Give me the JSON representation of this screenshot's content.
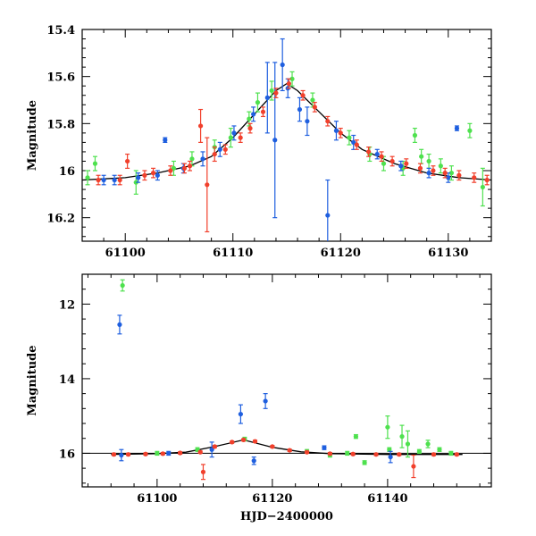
{
  "chart_data": [
    {
      "type": "scatter",
      "panel": "top",
      "title": "",
      "xlabel": "",
      "ylabel": "Magnitude",
      "xlim": [
        61096,
        61134
      ],
      "ylim": [
        16.3,
        15.4
      ],
      "y_inverted": true,
      "xticks": [
        61100,
        61110,
        61120,
        61130
      ],
      "xtick_labels": [
        "61100",
        "61110",
        "61120",
        "61130"
      ],
      "yticks": [
        15.4,
        15.6,
        15.8,
        16.0,
        16.2
      ],
      "ytick_labels": [
        "15.4",
        "15.6",
        "15.8",
        "16",
        "16.2"
      ],
      "model_curve": {
        "name": "model",
        "color": "#000000",
        "x": [
          61096,
          61100,
          61103,
          61106,
          61108,
          61110,
          61112,
          61114,
          61115,
          61116,
          61118,
          61120,
          61122,
          61125,
          61128,
          61131,
          61134
        ],
        "y": [
          16.04,
          16.03,
          16.01,
          15.98,
          15.94,
          15.86,
          15.76,
          15.66,
          15.63,
          15.66,
          15.75,
          15.84,
          15.91,
          15.97,
          16.01,
          16.03,
          16.04
        ]
      },
      "series": [
        {
          "name": "green",
          "color": "#4ee14e",
          "x": [
            61096.5,
            61097.2,
            61101.0,
            61104.5,
            61106.2,
            61108.3,
            61109.8,
            61111.5,
            61112.3,
            61113.6,
            61115.5,
            61117.4,
            61120.8,
            61122.7,
            61124.0,
            61125.8,
            61126.9,
            61127.5,
            61128.2,
            61129.3,
            61130.3,
            61132.0,
            61133.2
          ],
          "y": [
            16.03,
            15.97,
            16.05,
            15.99,
            15.95,
            15.9,
            15.86,
            15.78,
            15.71,
            15.66,
            15.61,
            15.7,
            15.86,
            15.93,
            15.97,
            15.99,
            15.85,
            15.94,
            15.96,
            15.98,
            16.01,
            15.83,
            16.07
          ],
          "yerr": [
            0.03,
            0.03,
            0.05,
            0.03,
            0.03,
            0.03,
            0.04,
            0.03,
            0.04,
            0.04,
            0.03,
            0.03,
            0.03,
            0.03,
            0.03,
            0.03,
            0.03,
            0.03,
            0.03,
            0.03,
            0.03,
            0.03,
            0.08
          ]
        },
        {
          "name": "blue",
          "color": "#1f5fdf",
          "x": [
            61098.0,
            61099.0,
            61101.2,
            61103.0,
            61103.7,
            61105.4,
            61107.2,
            61108.8,
            61110.1,
            61111.9,
            61113.2,
            61113.9,
            61114.6,
            61115.1,
            61116.2,
            61116.9,
            61118.8,
            61119.6,
            61121.2,
            61123.4,
            61125.6,
            61128.2,
            61130.0,
            61130.8
          ],
          "y": [
            16.04,
            16.04,
            16.03,
            16.02,
            15.87,
            15.99,
            15.95,
            15.91,
            15.84,
            15.76,
            15.69,
            15.87,
            15.55,
            15.65,
            15.74,
            15.79,
            16.19,
            15.83,
            15.88,
            15.93,
            15.98,
            16.01,
            16.03,
            15.82
          ],
          "yerr": [
            0.02,
            0.02,
            0.02,
            0.02,
            0.01,
            0.02,
            0.03,
            0.03,
            0.03,
            0.03,
            0.15,
            0.33,
            0.11,
            0.04,
            0.05,
            0.06,
            0.15,
            0.04,
            0.03,
            0.02,
            0.02,
            0.02,
            0.02,
            0.01
          ]
        },
        {
          "name": "red",
          "color": "#f1402c",
          "x": [
            61097.5,
            61099.5,
            61100.2,
            61101.8,
            61102.6,
            61104.2,
            61105.5,
            61106.0,
            61107.0,
            61107.6,
            61108.3,
            61109.3,
            61110.7,
            61111.6,
            61112.8,
            61114.0,
            61115.2,
            61116.5,
            61117.6,
            61118.8,
            61120.0,
            61121.5,
            61122.6,
            61123.8,
            61124.8,
            61126.1,
            61127.4,
            61128.6,
            61129.7,
            61131.0,
            61132.4,
            61133.6
          ],
          "y": [
            16.04,
            16.04,
            15.96,
            16.02,
            16.01,
            16.0,
            15.99,
            15.98,
            15.81,
            16.06,
            15.93,
            15.91,
            15.86,
            15.82,
            15.75,
            15.67,
            15.63,
            15.68,
            15.73,
            15.79,
            15.84,
            15.89,
            15.92,
            15.94,
            15.96,
            15.97,
            15.99,
            16.0,
            16.01,
            16.02,
            16.03,
            16.04
          ],
          "yerr": [
            0.02,
            0.02,
            0.03,
            0.02,
            0.02,
            0.02,
            0.02,
            0.02,
            0.07,
            0.2,
            0.03,
            0.02,
            0.02,
            0.02,
            0.02,
            0.02,
            0.02,
            0.02,
            0.02,
            0.02,
            0.02,
            0.02,
            0.02,
            0.02,
            0.02,
            0.02,
            0.02,
            0.02,
            0.02,
            0.02,
            0.02,
            0.02
          ]
        }
      ]
    },
    {
      "type": "scatter",
      "panel": "bottom",
      "title": "",
      "xlabel": "HJD−2400000",
      "ylabel": "Magnitude",
      "xlim": [
        61087,
        61158
      ],
      "ylim": [
        16.9,
        11.2
      ],
      "y_inverted": true,
      "xticks": [
        61100,
        61120,
        61140
      ],
      "xtick_labels": [
        "61100",
        "61120",
        "61140"
      ],
      "yticks": [
        12,
        14,
        16
      ],
      "ytick_labels": [
        "12",
        "14",
        "16"
      ],
      "reference_line": {
        "y": 16.0,
        "color": "#000000"
      },
      "model_curve": {
        "name": "model",
        "color": "#000000",
        "x": [
          61092,
          61100,
          61105,
          61110,
          61115,
          61120,
          61125,
          61130,
          61140,
          61150,
          61153
        ],
        "y": [
          16.03,
          16.01,
          15.97,
          15.82,
          15.64,
          15.84,
          15.96,
          16.01,
          16.03,
          16.03,
          16.03
        ]
      },
      "series": [
        {
          "name": "green",
          "color": "#4ee14e",
          "x": [
            61094.0,
            61100.0,
            61107.0,
            61115.2,
            61126.0,
            61130.0,
            61133.0,
            61134.5,
            61136.0,
            61140.0,
            61140.3,
            61142.5,
            61143.5,
            61145.5,
            61147.0,
            61149.0,
            61151.0
          ],
          "y": [
            11.5,
            16.0,
            15.9,
            15.62,
            15.95,
            16.05,
            16.0,
            15.55,
            16.25,
            15.3,
            15.9,
            15.55,
            15.75,
            15.95,
            15.75,
            15.9,
            16.0
          ],
          "yerr": [
            0.15,
            0.05,
            0.05,
            0.05,
            0.05,
            0.05,
            0.05,
            0.05,
            0.05,
            0.3,
            0.05,
            0.3,
            0.35,
            0.05,
            0.1,
            0.05,
            0.05
          ]
        },
        {
          "name": "blue",
          "color": "#1f5fdf",
          "x": [
            61093.5,
            61093.8,
            61102.0,
            61109.5,
            61114.5,
            61116.8,
            61118.8,
            61129.0,
            61140.5
          ],
          "y": [
            12.55,
            16.05,
            16.0,
            15.9,
            14.95,
            16.2,
            14.6,
            15.85,
            16.1
          ],
          "yerr": [
            0.25,
            0.15,
            0.05,
            0.2,
            0.25,
            0.1,
            0.2,
            0.05,
            0.15
          ]
        },
        {
          "name": "red",
          "color": "#f1402c",
          "x": [
            61092.5,
            61095.0,
            61098.0,
            61101.0,
            61104.0,
            61107.5,
            61108.0,
            61110.0,
            61113.0,
            61115.0,
            61117.0,
            61120.0,
            61123.0,
            61126.0,
            61130.0,
            61134.0,
            61138.0,
            61142.0,
            61144.5,
            61148.0,
            61152.0
          ],
          "y": [
            16.03,
            16.03,
            16.02,
            16.01,
            15.99,
            15.97,
            16.5,
            15.82,
            15.7,
            15.64,
            15.68,
            15.82,
            15.92,
            15.97,
            16.01,
            16.02,
            16.03,
            16.03,
            16.35,
            16.03,
            16.03
          ],
          "yerr": [
            0.03,
            0.03,
            0.03,
            0.03,
            0.03,
            0.03,
            0.2,
            0.03,
            0.03,
            0.03,
            0.03,
            0.03,
            0.03,
            0.03,
            0.03,
            0.03,
            0.03,
            0.03,
            0.3,
            0.03,
            0.03
          ]
        }
      ]
    }
  ]
}
